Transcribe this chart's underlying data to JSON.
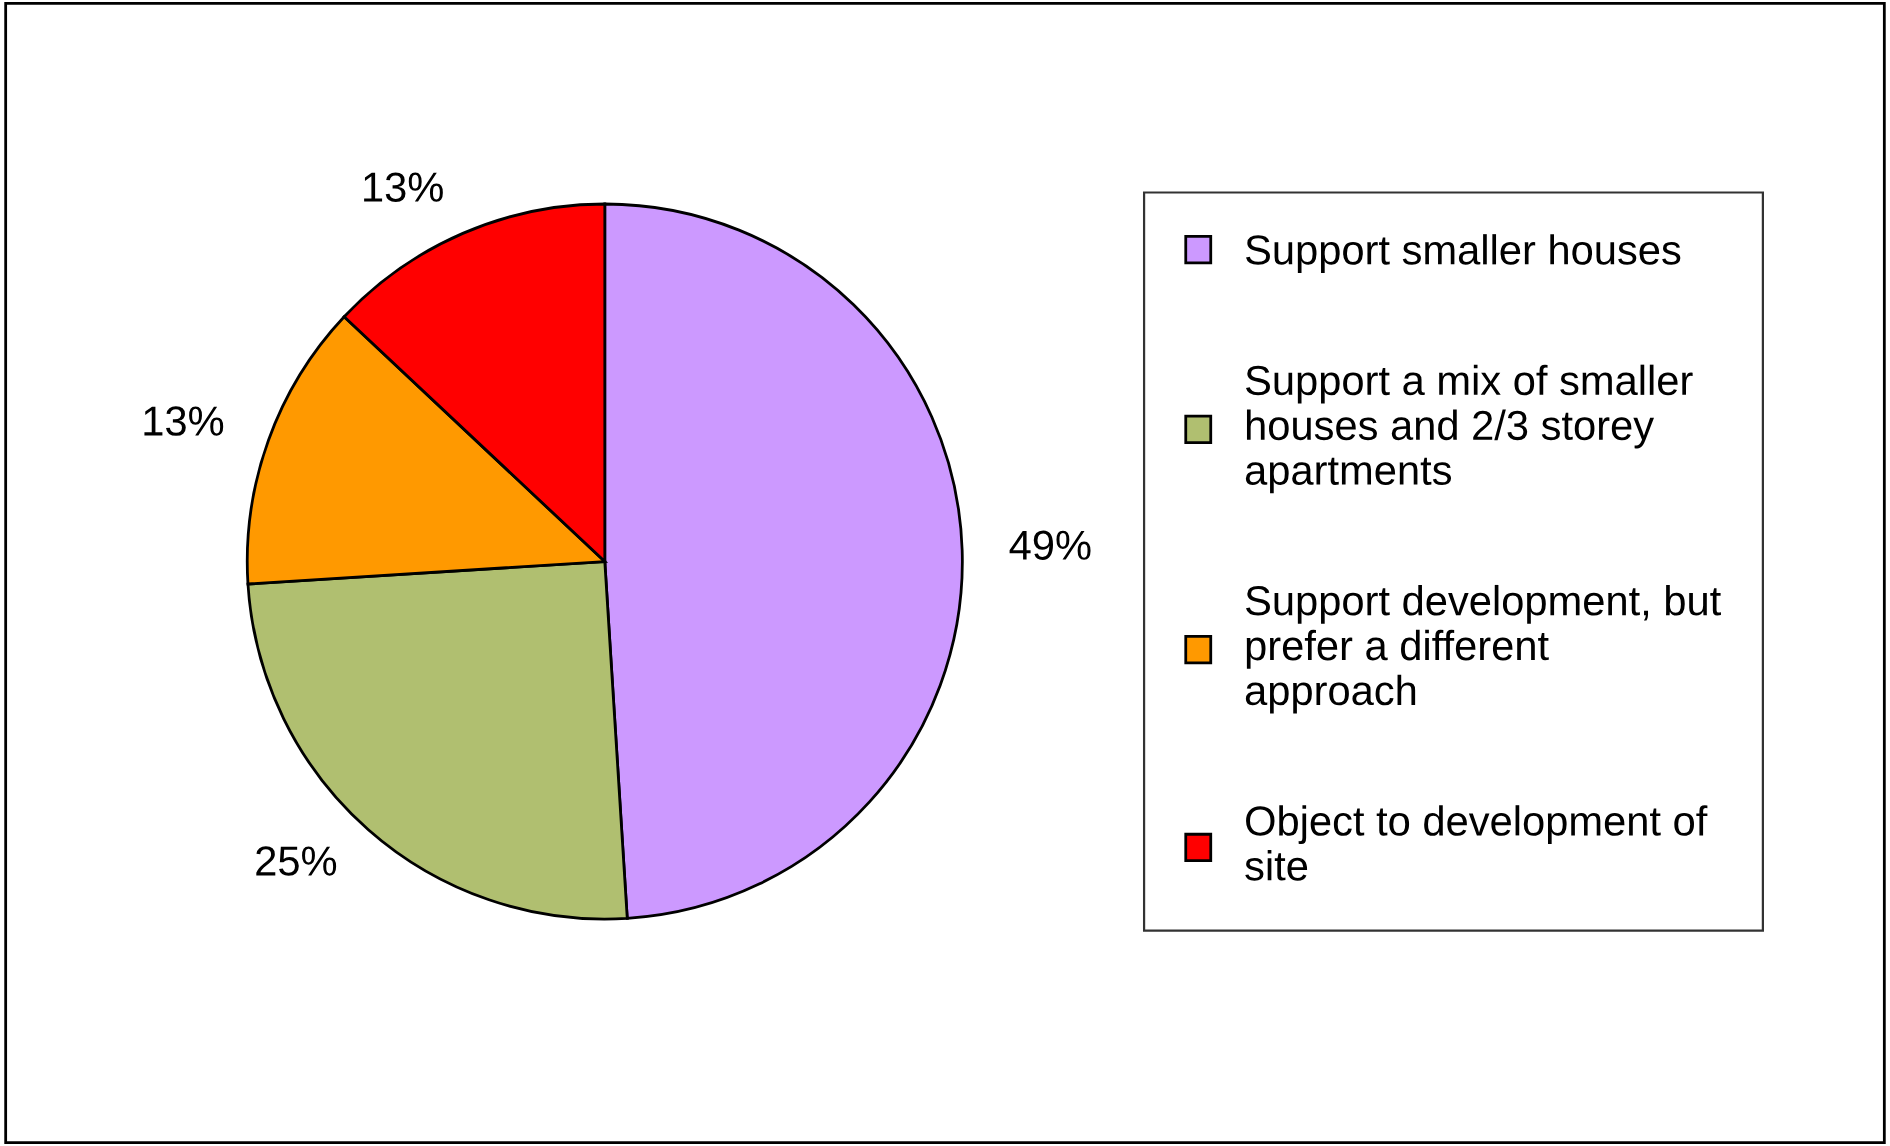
{
  "chart_data": {
    "type": "pie",
    "categories": [
      "Support smaller houses",
      "Support a mix of smaller houses and 2/3 storey apartments",
      "Support development, but prefer a different approach",
      "Object to development of site"
    ],
    "values": [
      49,
      25,
      13,
      13
    ],
    "colors": [
      "#cc99ff",
      "#b0bf70",
      "#ff9900",
      "#ff0000"
    ],
    "value_labels": [
      "49%",
      "25%",
      "13%",
      "13%"
    ],
    "legend": "right"
  }
}
